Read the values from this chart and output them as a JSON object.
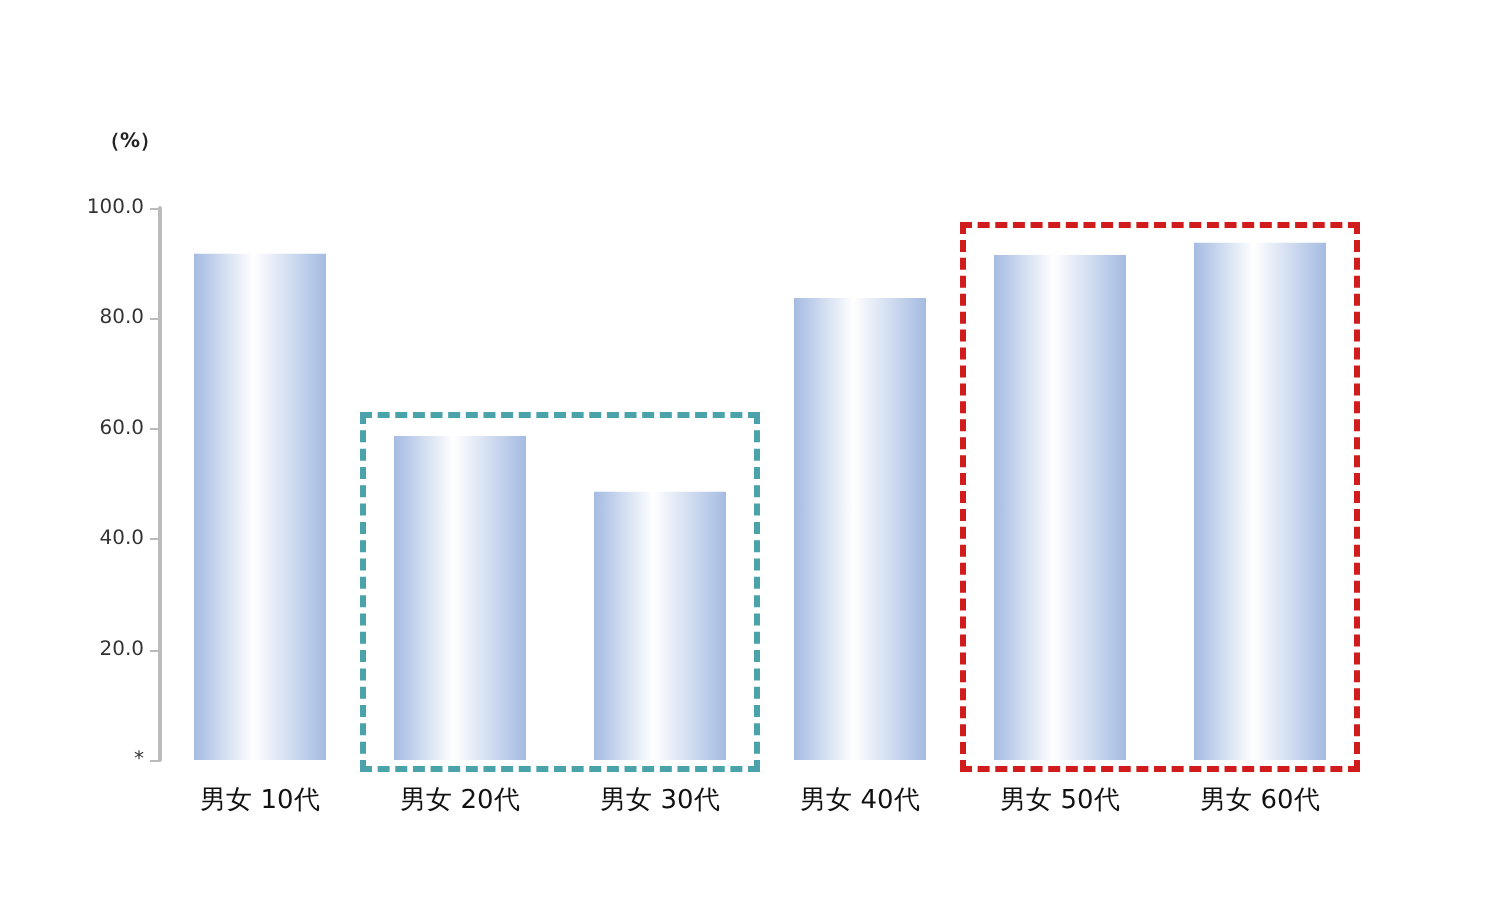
{
  "chart_data": {
    "type": "bar",
    "ylabel": "（%）",
    "categories": [
      "男女 10代",
      "男女 20代",
      "男女 30代",
      "男女 40代",
      "男女 50代",
      "男女 60代"
    ],
    "values": [
      91.7,
      58.7,
      48.6,
      83.7,
      91.5,
      93.7
    ],
    "color": "#a4bbe2",
    "ylim": [
      0,
      100
    ],
    "yticks": [
      {
        "value": 0,
        "label": "*"
      },
      {
        "value": 20,
        "label": "20.0"
      },
      {
        "value": 40,
        "label": "40.0"
      },
      {
        "value": 60,
        "label": "60.0"
      },
      {
        "value": 80,
        "label": "80.0"
      },
      {
        "value": 100,
        "label": "100.0"
      }
    ],
    "grid": false
  }
}
